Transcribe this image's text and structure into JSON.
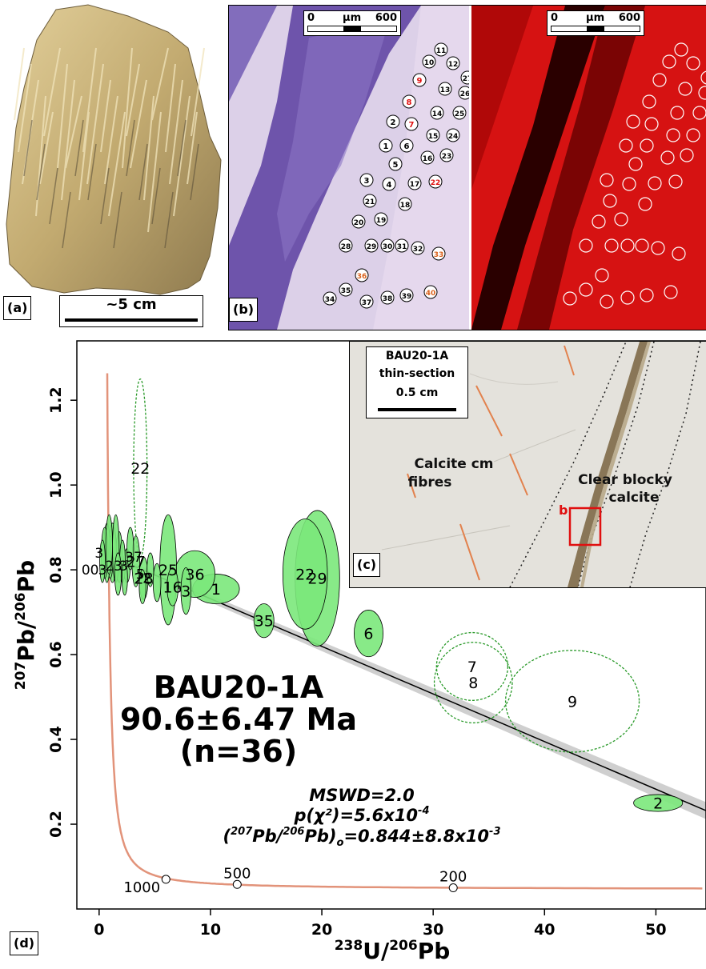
{
  "panel_a": {
    "label": "(a)",
    "scale_label": "~5 cm",
    "colors": {
      "rock_light": "#d9c48f",
      "rock_mid": "#b09a60",
      "rock_dark": "#5d513a"
    }
  },
  "panel_b": {
    "label": "(b)",
    "scale_left": "0",
    "scale_mid": "µm",
    "scale_right": "600",
    "spots": [
      {
        "id": "11",
        "tone": "black"
      },
      {
        "id": "10",
        "tone": "black"
      },
      {
        "id": "12",
        "tone": "black"
      },
      {
        "id": "27",
        "tone": "black"
      },
      {
        "id": "9",
        "tone": "red"
      },
      {
        "id": "13",
        "tone": "black"
      },
      {
        "id": "26",
        "tone": "black"
      },
      {
        "id": "8",
        "tone": "red"
      },
      {
        "id": "14",
        "tone": "black"
      },
      {
        "id": "25",
        "tone": "black"
      },
      {
        "id": "2",
        "tone": "black"
      },
      {
        "id": "7",
        "tone": "red"
      },
      {
        "id": "15",
        "tone": "black"
      },
      {
        "id": "24",
        "tone": "black"
      },
      {
        "id": "1",
        "tone": "black"
      },
      {
        "id": "6",
        "tone": "black"
      },
      {
        "id": "16",
        "tone": "black"
      },
      {
        "id": "23",
        "tone": "black"
      },
      {
        "id": "5",
        "tone": "black"
      },
      {
        "id": "3",
        "tone": "black"
      },
      {
        "id": "4",
        "tone": "black"
      },
      {
        "id": "17",
        "tone": "black"
      },
      {
        "id": "22",
        "tone": "red"
      },
      {
        "id": "21",
        "tone": "black"
      },
      {
        "id": "18",
        "tone": "black"
      },
      {
        "id": "20",
        "tone": "black"
      },
      {
        "id": "19",
        "tone": "black"
      },
      {
        "id": "28",
        "tone": "black"
      },
      {
        "id": "29",
        "tone": "black"
      },
      {
        "id": "30",
        "tone": "black"
      },
      {
        "id": "31",
        "tone": "black"
      },
      {
        "id": "32",
        "tone": "black"
      },
      {
        "id": "33",
        "tone": "orange"
      },
      {
        "id": "36",
        "tone": "orange"
      },
      {
        "id": "35",
        "tone": "black"
      },
      {
        "id": "34",
        "tone": "black"
      },
      {
        "id": "37",
        "tone": "black"
      },
      {
        "id": "38",
        "tone": "black"
      },
      {
        "id": "39",
        "tone": "black"
      },
      {
        "id": "40",
        "tone": "orange"
      }
    ],
    "colors": {
      "micro_bg": "#d8c8e6",
      "micro_dark": "#5b3fa0",
      "cl_bg": "#d21010",
      "cl_dark": "#2a0000",
      "red_text": "#e01010",
      "orange_text": "#d9601a"
    }
  },
  "panel_c": {
    "label": "(c)",
    "box_title_1": "BAU20-1A",
    "box_title_2": "thin-section",
    "box_scale": "0.5 cm",
    "text_fibres_1": "Calcite cm",
    "text_fibres_2": "fibres",
    "text_blocky_1": "Clear blocky",
    "text_blocky_2": "calcite",
    "marker": "b",
    "colors": {
      "bg": "#e4e2dc",
      "vein": "#7e6a48",
      "fibre_line": "#e2824e",
      "marker": "#e01010"
    }
  },
  "panel_d": {
    "label": "(d)",
    "title_1": "BAU20-1A",
    "title_2": "90.6±6.47 Ma",
    "title_3": "(n=36)",
    "stat_mswd": "MSWD=2.0",
    "stat_p": "p(χ²)=5.6x10",
    "stat_p_exp": "-4",
    "stat_pb0_prefix": "(",
    "stat_pb0_sup1": "207",
    "stat_pb0_mid": "Pb/",
    "stat_pb0_sup2": "206",
    "stat_pb0_suffix": "Pb)",
    "stat_pb0_sub": "o",
    "stat_pb0_value": "=0.844±8.8x10",
    "stat_pb0_exp": "-3",
    "colors": {
      "ellipse_fill": "#7be87b",
      "ellipse_dashed": "#2a9a2a",
      "concordia": "#e2937a",
      "band": "#cfcfcf",
      "regression": "#000000"
    }
  },
  "chart_data": {
    "type": "scatter",
    "xlabel_sup": "238",
    "xlabel_main": "U/",
    "xlabel_sup2": "206",
    "xlabel_end": "Pb",
    "ylabel_sup": "207",
    "ylabel_main": "Pb/",
    "ylabel_sup2": "206",
    "ylabel_end": "Pb",
    "xlim": [
      -2,
      54.5
    ],
    "ylim": [
      0.0,
      1.34
    ],
    "xticks": [
      0,
      10,
      20,
      30,
      40,
      50
    ],
    "yticks": [
      0.2,
      0.4,
      0.6,
      0.8,
      1.0,
      1.2
    ],
    "regression": {
      "y_intercept": 0.844,
      "x_end": 54.5,
      "y_end": 0.232
    },
    "concordia_labels": [
      {
        "label": "1000",
        "x": 6.0,
        "y": 0.07
      },
      {
        "label": "500",
        "x": 12.4,
        "y": 0.058
      },
      {
        "label": "200",
        "x": 31.8,
        "y": 0.05
      }
    ],
    "ellipses": [
      {
        "label": "2",
        "x": 50.2,
        "y": 0.25,
        "rx": 2.2,
        "ry": 0.02,
        "filled": true
      },
      {
        "label": "9",
        "x": 42.5,
        "y": 0.49,
        "rx": 6.0,
        "ry": 0.12,
        "filled": false
      },
      {
        "label": "7",
        "x": 33.5,
        "y": 0.572,
        "rx": 3.2,
        "ry": 0.08,
        "filled": false
      },
      {
        "label": "8",
        "x": 33.6,
        "y": 0.534,
        "rx": 3.5,
        "ry": 0.095,
        "filled": false
      },
      {
        "label": "6",
        "x": 24.2,
        "y": 0.65,
        "rx": 1.3,
        "ry": 0.055,
        "filled": true
      },
      {
        "label": "29",
        "x": 19.6,
        "y": 0.78,
        "rx": 2.0,
        "ry": 0.16,
        "filled": true
      },
      {
        "label": "22",
        "x": 18.5,
        "y": 0.79,
        "rx": 2.0,
        "ry": 0.13,
        "filled": true
      },
      {
        "label": "35",
        "x": 14.8,
        "y": 0.68,
        "rx": 0.9,
        "ry": 0.04,
        "filled": true
      },
      {
        "label": "1",
        "x": 10.5,
        "y": 0.755,
        "rx": 2.1,
        "ry": 0.035,
        "filled": true
      },
      {
        "label": "36",
        "x": 8.6,
        "y": 0.79,
        "rx": 1.8,
        "ry": 0.055,
        "filled": true
      },
      {
        "label": "3",
        "x": 7.8,
        "y": 0.75,
        "rx": 0.45,
        "ry": 0.055,
        "filled": true
      },
      {
        "label": "25",
        "x": 6.2,
        "y": 0.8,
        "rx": 0.75,
        "ry": 0.13,
        "filled": true
      },
      {
        "label": "16",
        "x": 6.6,
        "y": 0.76,
        "rx": 0.5,
        "ry": 0.045,
        "filled": true
      },
      {
        "label": "22",
        "x": 3.7,
        "y": 1.04,
        "rx": 0.6,
        "ry": 0.21,
        "filled": false
      },
      {
        "label": "28",
        "x": 4.0,
        "y": 0.78,
        "rx": 0.4,
        "ry": 0.05,
        "filled": true
      },
      {
        "label": "27",
        "x": 3.3,
        "y": 0.82,
        "rx": 0.35,
        "ry": 0.06,
        "filled": true
      },
      {
        "label": "",
        "x": 5.2,
        "y": 0.77,
        "rx": 0.35,
        "ry": 0.045,
        "filled": true
      },
      {
        "label": "",
        "x": 4.6,
        "y": 0.8,
        "rx": 0.3,
        "ry": 0.04,
        "filled": true
      },
      {
        "label": "",
        "x": 2.5,
        "y": 0.81,
        "rx": 0.3,
        "ry": 0.04,
        "filled": true
      },
      {
        "label": "",
        "x": 1.8,
        "y": 0.83,
        "rx": 0.3,
        "ry": 0.06,
        "filled": true
      },
      {
        "label": "",
        "x": 2.1,
        "y": 0.82,
        "rx": 0.25,
        "ry": 0.05,
        "filled": true
      },
      {
        "label": "",
        "x": 1.2,
        "y": 0.84,
        "rx": 0.35,
        "ry": 0.07,
        "filled": true
      },
      {
        "label": "",
        "x": 1.0,
        "y": 0.83,
        "rx": 0.25,
        "ry": 0.05,
        "filled": true
      },
      {
        "label": "",
        "x": 0.7,
        "y": 0.84,
        "rx": 0.3,
        "ry": 0.07,
        "filled": true
      },
      {
        "label": "",
        "x": 0.5,
        "y": 0.84,
        "rx": 0.3,
        "ry": 0.06,
        "filled": true
      },
      {
        "label": "",
        "x": 1.5,
        "y": 0.85,
        "rx": 0.3,
        "ry": 0.08,
        "filled": true
      },
      {
        "label": "",
        "x": 0.9,
        "y": 0.86,
        "rx": 0.3,
        "ry": 0.07,
        "filled": true
      },
      {
        "label": "",
        "x": 2.8,
        "y": 0.85,
        "rx": 0.3,
        "ry": 0.05,
        "filled": true
      },
      {
        "label": "",
        "x": 0.3,
        "y": 0.82,
        "rx": 0.25,
        "ry": 0.05,
        "filled": true
      },
      {
        "label": "",
        "x": 1.7,
        "y": 0.79,
        "rx": 0.3,
        "ry": 0.05,
        "filled": true
      },
      {
        "label": "",
        "x": 3.9,
        "y": 0.76,
        "rx": 0.3,
        "ry": 0.04,
        "filled": true
      },
      {
        "label": "",
        "x": 2.3,
        "y": 0.78,
        "rx": 0.25,
        "ry": 0.04,
        "filled": true
      }
    ],
    "cluster_labels": [
      "00",
      "3",
      "3",
      "23",
      "3",
      "37",
      "5",
      "2"
    ]
  }
}
